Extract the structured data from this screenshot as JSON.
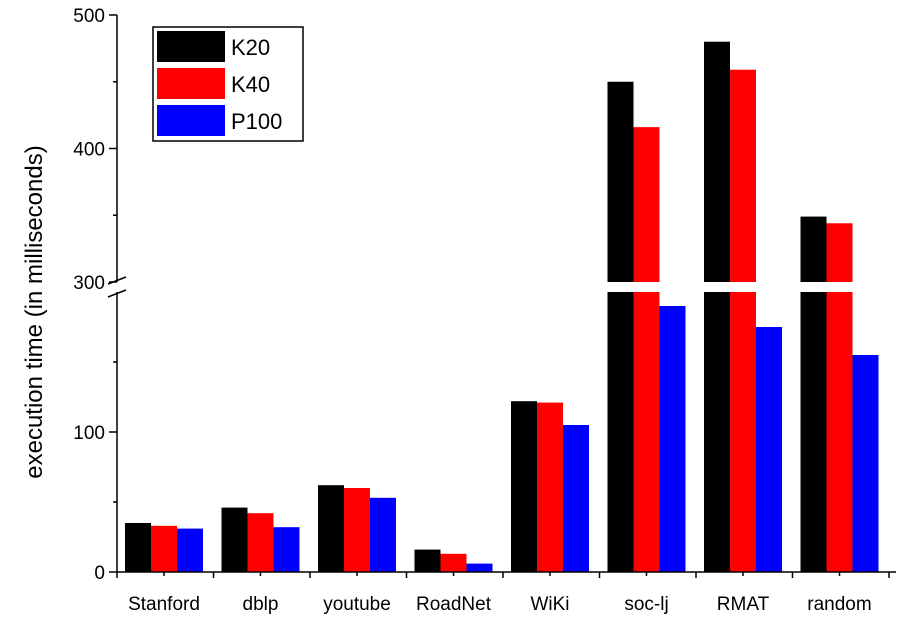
{
  "chart_data": {
    "type": "bar",
    "title": "",
    "xlabel": "",
    "ylabel": "execution time (in milliseconds)",
    "categories": [
      "Stanford",
      "dblp",
      "youtube",
      "RoadNet",
      "WiKi",
      "soc-lj",
      "RMAT",
      "random"
    ],
    "series": [
      {
        "name": "K20",
        "color": "#000000",
        "values": [
          35,
          46,
          62,
          16,
          122,
          450,
          480,
          349
        ]
      },
      {
        "name": "K40",
        "color": "#ff0000",
        "values": [
          33,
          42,
          60,
          13,
          121,
          416,
          459,
          344
        ]
      },
      {
        "name": "P100",
        "color": "#0000ff",
        "values": [
          31,
          32,
          53,
          6,
          105,
          190,
          175,
          155
        ]
      }
    ],
    "y_axis": {
      "broken": true,
      "lower_segment": {
        "range": [
          0,
          200
        ],
        "ticks": [
          0,
          100
        ]
      },
      "upper_segment": {
        "range": [
          300,
          500
        ],
        "ticks": [
          300,
          400,
          500
        ]
      },
      "tick_labels": [
        "0",
        "100",
        "300",
        "400",
        "500"
      ]
    },
    "grid": false,
    "legend_position": "top-left"
  }
}
